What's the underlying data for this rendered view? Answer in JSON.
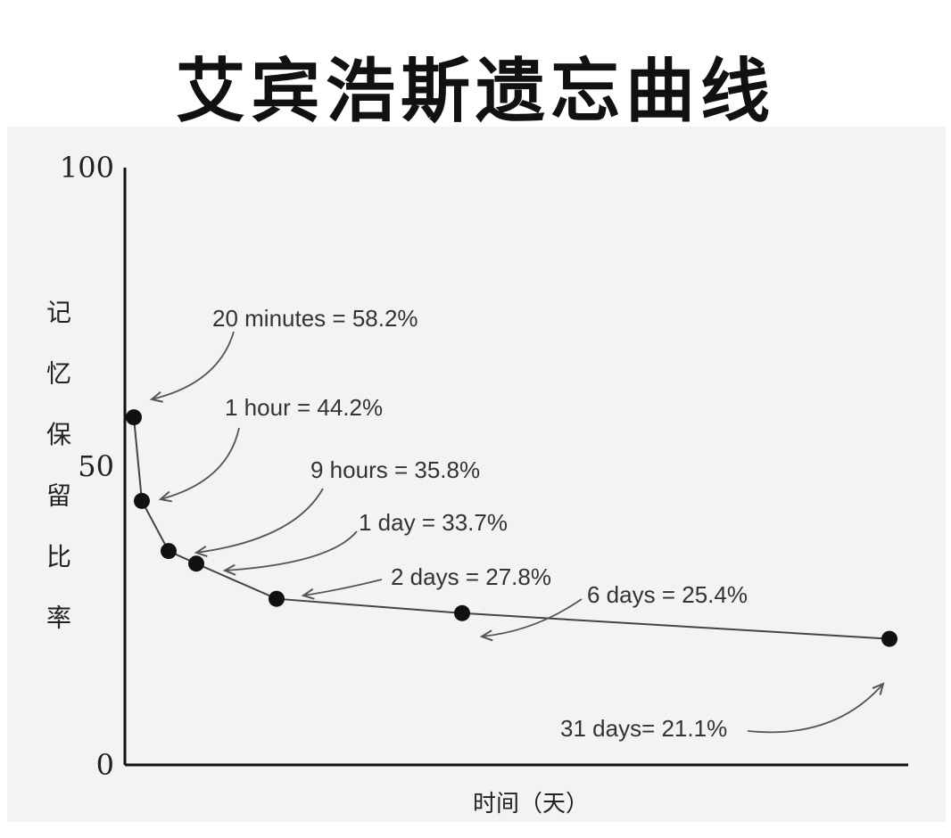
{
  "title": "艾宾浩斯遗忘曲线",
  "chart_data": {
    "type": "line",
    "title": "艾宾浩斯遗忘曲线",
    "xlabel": "时间（天）",
    "ylabel": "记忆保留比率",
    "ylim": [
      0,
      100
    ],
    "yticks": [
      0,
      50,
      100
    ],
    "xlim": [
      0,
      31
    ],
    "x_scale": "linear",
    "grid": false,
    "line_color": "#444444",
    "marker_color": "#111111",
    "series": [
      {
        "x": [
          0.0139,
          0.0417,
          0.375,
          1,
          2,
          6,
          31
        ],
        "values": [
          58.2,
          44.2,
          35.8,
          33.7,
          27.8,
          25.4,
          21.1
        ],
        "labels": [
          "20 minutes = 58.2%",
          "1 hour = 44.2%",
          "9 hours = 35.8%",
          "1 day = 33.7%",
          "2 days = 27.8%",
          "6 days = 25.4%",
          "31 days= 21.1%"
        ]
      }
    ]
  }
}
